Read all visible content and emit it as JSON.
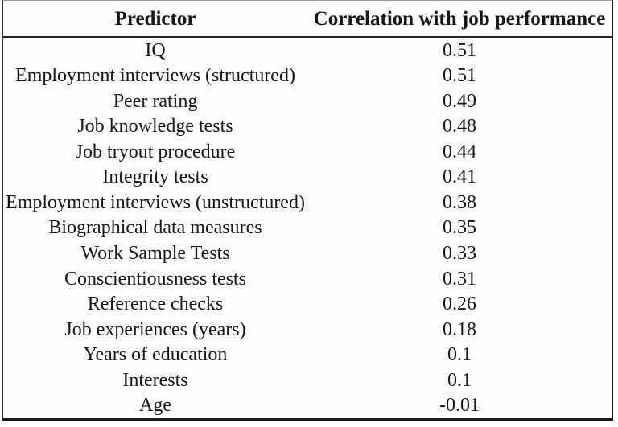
{
  "table": {
    "columns": [
      "Predictor",
      "Correlation with job performance"
    ],
    "rows": [
      {
        "predictor": "IQ",
        "correlation": "0.51"
      },
      {
        "predictor": "Employment interviews (structured)",
        "correlation": "0.51"
      },
      {
        "predictor": "Peer rating",
        "correlation": "0.49"
      },
      {
        "predictor": "Job knowledge tests",
        "correlation": "0.48"
      },
      {
        "predictor": "Job tryout procedure",
        "correlation": "0.44"
      },
      {
        "predictor": "Integrity tests",
        "correlation": "0.41"
      },
      {
        "predictor": "Employment interviews (unstructured)",
        "correlation": "0.38"
      },
      {
        "predictor": "Biographical data measures",
        "correlation": "0.35"
      },
      {
        "predictor": "Work Sample Tests",
        "correlation": "0.33"
      },
      {
        "predictor": "Conscientiousness tests",
        "correlation": "0.31"
      },
      {
        "predictor": "Reference checks",
        "correlation": "0.26"
      },
      {
        "predictor": "Job experiences (years)",
        "correlation": "0.18"
      },
      {
        "predictor": "Years of education",
        "correlation": "0.1"
      },
      {
        "predictor": "Interests",
        "correlation": "0.1"
      },
      {
        "predictor": "Age",
        "correlation": "-0.01"
      }
    ]
  },
  "chart_data": {
    "type": "table",
    "columns": [
      "Predictor",
      "Correlation with job performance"
    ],
    "categories": [
      "IQ",
      "Employment interviews (structured)",
      "Peer rating",
      "Job knowledge tests",
      "Job tryout procedure",
      "Integrity tests",
      "Employment interviews (unstructured)",
      "Biographical data measures",
      "Work Sample Tests",
      "Conscientiousness tests",
      "Reference checks",
      "Job experiences (years)",
      "Years of education",
      "Interests",
      "Age"
    ],
    "values": [
      0.51,
      0.51,
      0.49,
      0.48,
      0.44,
      0.41,
      0.38,
      0.35,
      0.33,
      0.31,
      0.26,
      0.18,
      0.1,
      0.1,
      -0.01
    ]
  },
  "colors": {
    "text": "#161616",
    "border": "#2e2e2e",
    "background": "#ffffff"
  }
}
